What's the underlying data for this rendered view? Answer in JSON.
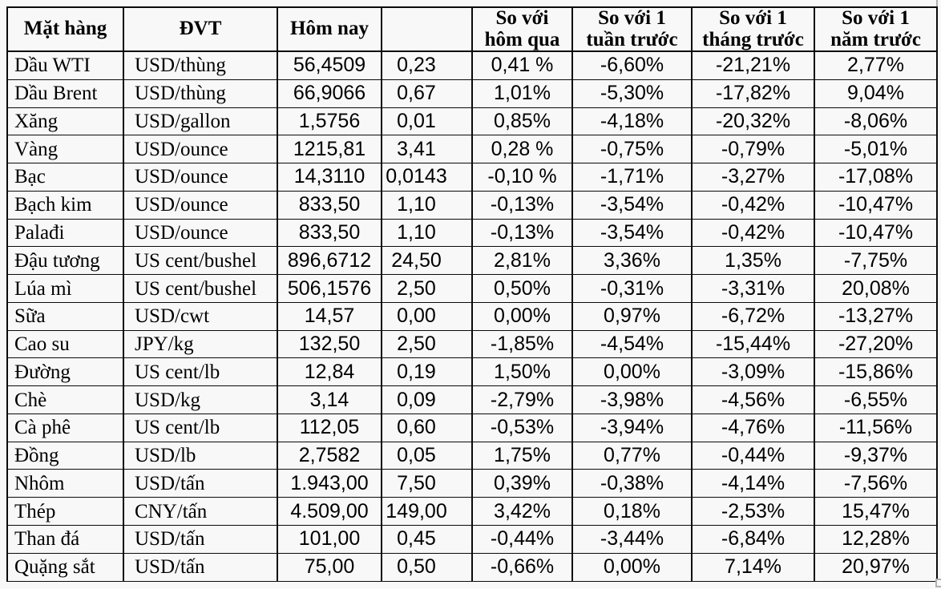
{
  "colors": {
    "background": "#f8f8f8",
    "table_border": "#0a0a0a",
    "text": "#000000",
    "corner_handle": "#b0b0b0"
  },
  "table": {
    "columns": [
      "Mặt hàng",
      "ĐVT",
      "Hôm nay",
      "",
      "So với\nhôm qua",
      "So với 1\ntuần trước",
      "So với 1\ntháng trước",
      "So với 1\nnăm trước"
    ],
    "rows": [
      [
        "Dầu WTI",
        "USD/thùng",
        "56,4509",
        "0,23",
        "0,41 %",
        "-6,60%",
        "-21,21%",
        "2,77%"
      ],
      [
        "Dầu Brent",
        "USD/thùng",
        "66,9066",
        "0,67",
        "1,01%",
        "-5,30%",
        "-17,82%",
        "9,04%"
      ],
      [
        "Xăng",
        "USD/gallon",
        "1,5756",
        "0,01",
        "0,85%",
        "-4,18%",
        "-20,32%",
        "-8,06%"
      ],
      [
        "Vàng",
        "USD/ounce",
        "1215,81",
        "3,41",
        "0,28 %",
        "-0,75%",
        "-0,79%",
        "-5,01%"
      ],
      [
        "Bạc",
        "USD/ounce",
        "14,3110",
        "0,0143",
        "-0,10 %",
        "-1,71%",
        "-3,27%",
        "-17,08%"
      ],
      [
        "Bạch kim",
        "USD/ounce",
        "833,50",
        "1,10",
        "-0,13%",
        "-3,54%",
        "-0,42%",
        "-10,47%"
      ],
      [
        "Palađi",
        "USD/ounce",
        "833,50",
        "1,10",
        "-0,13%",
        "-3,54%",
        "-0,42%",
        "-10,47%"
      ],
      [
        "Đậu tương",
        "US cent/bushel",
        "896,6712",
        "24,50",
        "2,81%",
        "3,36%",
        "1,35%",
        "-7,75%"
      ],
      [
        "Lúa mì",
        "US cent/bushel",
        "506,1576",
        "2,50",
        "0,50%",
        "-0,31%",
        "-3,31%",
        "20,08%"
      ],
      [
        "Sữa",
        "USD/cwt",
        "14,57",
        "0,00",
        "0,00%",
        "0,97%",
        "-6,72%",
        "-13,27%"
      ],
      [
        "Cao su",
        "JPY/kg",
        "132,50",
        "2,50",
        "-1,85%",
        "-4,54%",
        "-15,44%",
        "-27,20%"
      ],
      [
        "Đường",
        "US cent/lb",
        "12,84",
        "0,19",
        "1,50%",
        "0,00%",
        "-3,09%",
        "-15,86%"
      ],
      [
        "Chè",
        "USD/kg",
        "3,14",
        "0,09",
        "-2,79%",
        "-3,98%",
        "-4,56%",
        "-6,55%"
      ],
      [
        "Cà phê",
        "US cent/lb",
        "112,05",
        "0,60",
        "-0,53%",
        "-3,94%",
        "-4,76%",
        "-11,56%"
      ],
      [
        "Đồng",
        "USD/lb",
        "2,7582",
        "0,05",
        "1,75%",
        "0,77%",
        "-0,44%",
        "-9,37%"
      ],
      [
        "Nhôm",
        "USD/tấn",
        "1.943,00",
        "7,50",
        "0,39%",
        "-0,38%",
        "-4,14%",
        "-7,56%"
      ],
      [
        "Thép",
        "CNY/tấn",
        "4.509,00",
        "149,00",
        "3,42%",
        "0,18%",
        "-2,53%",
        "15,47%"
      ],
      [
        "Than đá",
        "USD/tấn",
        "101,00",
        "0,45",
        "-0,44%",
        "-3,44%",
        "-6,84%",
        "12,28%"
      ],
      [
        "Quặng sắt",
        "USD/tấn",
        "75,00",
        "0,50",
        "-0,66%",
        "0,00%",
        "7,14%",
        "20,97%"
      ]
    ]
  }
}
